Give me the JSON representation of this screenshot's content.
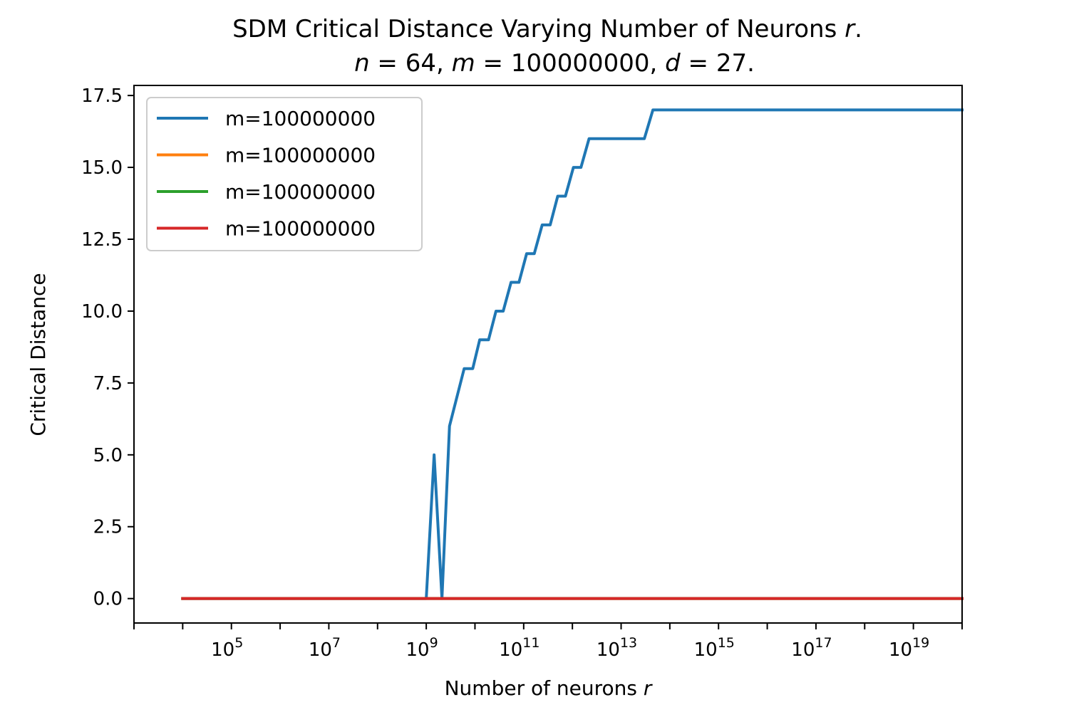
{
  "chart_data": {
    "type": "line",
    "title_line1_prefix": "SDM Critical Distance Varying Number of Neurons ",
    "title_line1_var": "r",
    "title_line1_suffix": ".",
    "title_line2": {
      "n_var": "n",
      "n_eq": " = 64, ",
      "m_var": "m",
      "m_eq": " = 100000000, ",
      "d_var": "d",
      "d_eq": " = 27."
    },
    "xlabel_prefix": "Number of neurons ",
    "xlabel_var": "r",
    "ylabel": "Critical Distance",
    "xscale": "log",
    "xlim": [
      1000,
      1e+20
    ],
    "ylim": [
      -0.85,
      17.85
    ],
    "grid": false,
    "legend_position": "upper-left",
    "y_ticks": [
      {
        "value": 0.0,
        "label": "0.0"
      },
      {
        "value": 2.5,
        "label": "2.5"
      },
      {
        "value": 5.0,
        "label": "5.0"
      },
      {
        "value": 7.5,
        "label": "7.5"
      },
      {
        "value": 10.0,
        "label": "10.0"
      },
      {
        "value": 12.5,
        "label": "12.5"
      },
      {
        "value": 15.0,
        "label": "15.0"
      },
      {
        "value": 17.5,
        "label": "17.5"
      }
    ],
    "x_ticks": [
      {
        "value": 100000,
        "base": "10",
        "exp": "5"
      },
      {
        "value": 10000000,
        "base": "10",
        "exp": "7"
      },
      {
        "value": 1000000000,
        "base": "10",
        "exp": "9"
      },
      {
        "value": 100000000000,
        "base": "10",
        "exp": "11"
      },
      {
        "value": 10000000000000,
        "base": "10",
        "exp": "13"
      },
      {
        "value": 1000000000000000,
        "base": "10",
        "exp": "15"
      },
      {
        "value": 100000000000000000,
        "base": "10",
        "exp": "17"
      },
      {
        "value": 10000000000000000000,
        "base": "10",
        "exp": "19"
      }
    ],
    "series": [
      {
        "name": "m=100000000",
        "color": "#1f77b4",
        "x": [
          10000,
          1000000000,
          1450000000,
          2100000000,
          3000000000,
          6000000000,
          9000000000,
          12500000000.0,
          19000000000.0,
          27000000000.0,
          38000000000.0,
          55000000000.0,
          80000000000.0,
          115000000000.0,
          165000000000.0,
          240000000000.0,
          350000000000.0,
          500000000000.0,
          720000000000.0,
          1050000000000.0,
          1500000000000.0,
          2200000000000.0,
          3100000000000.0,
          4500000000000.0,
          6500000000000.0,
          30000000000000.0,
          45000000000000.0,
          1e+20
        ],
        "y": [
          0,
          0,
          5,
          0,
          6,
          8,
          8,
          9,
          9,
          10,
          10,
          11,
          11,
          12,
          12,
          13,
          13,
          14,
          14,
          15,
          15,
          16,
          16,
          16,
          16,
          16,
          17,
          17
        ]
      },
      {
        "name": "m=100000000",
        "color": "#ff7f0e",
        "x": [
          10000,
          1e+20
        ],
        "y": [
          0,
          0
        ]
      },
      {
        "name": "m=100000000",
        "color": "#2ca02c",
        "x": [
          10000,
          1e+20
        ],
        "y": [
          0,
          0
        ]
      },
      {
        "name": "m=100000000",
        "color": "#d62728",
        "x": [
          10000,
          1e+20
        ],
        "y": [
          0,
          0
        ]
      }
    ]
  }
}
